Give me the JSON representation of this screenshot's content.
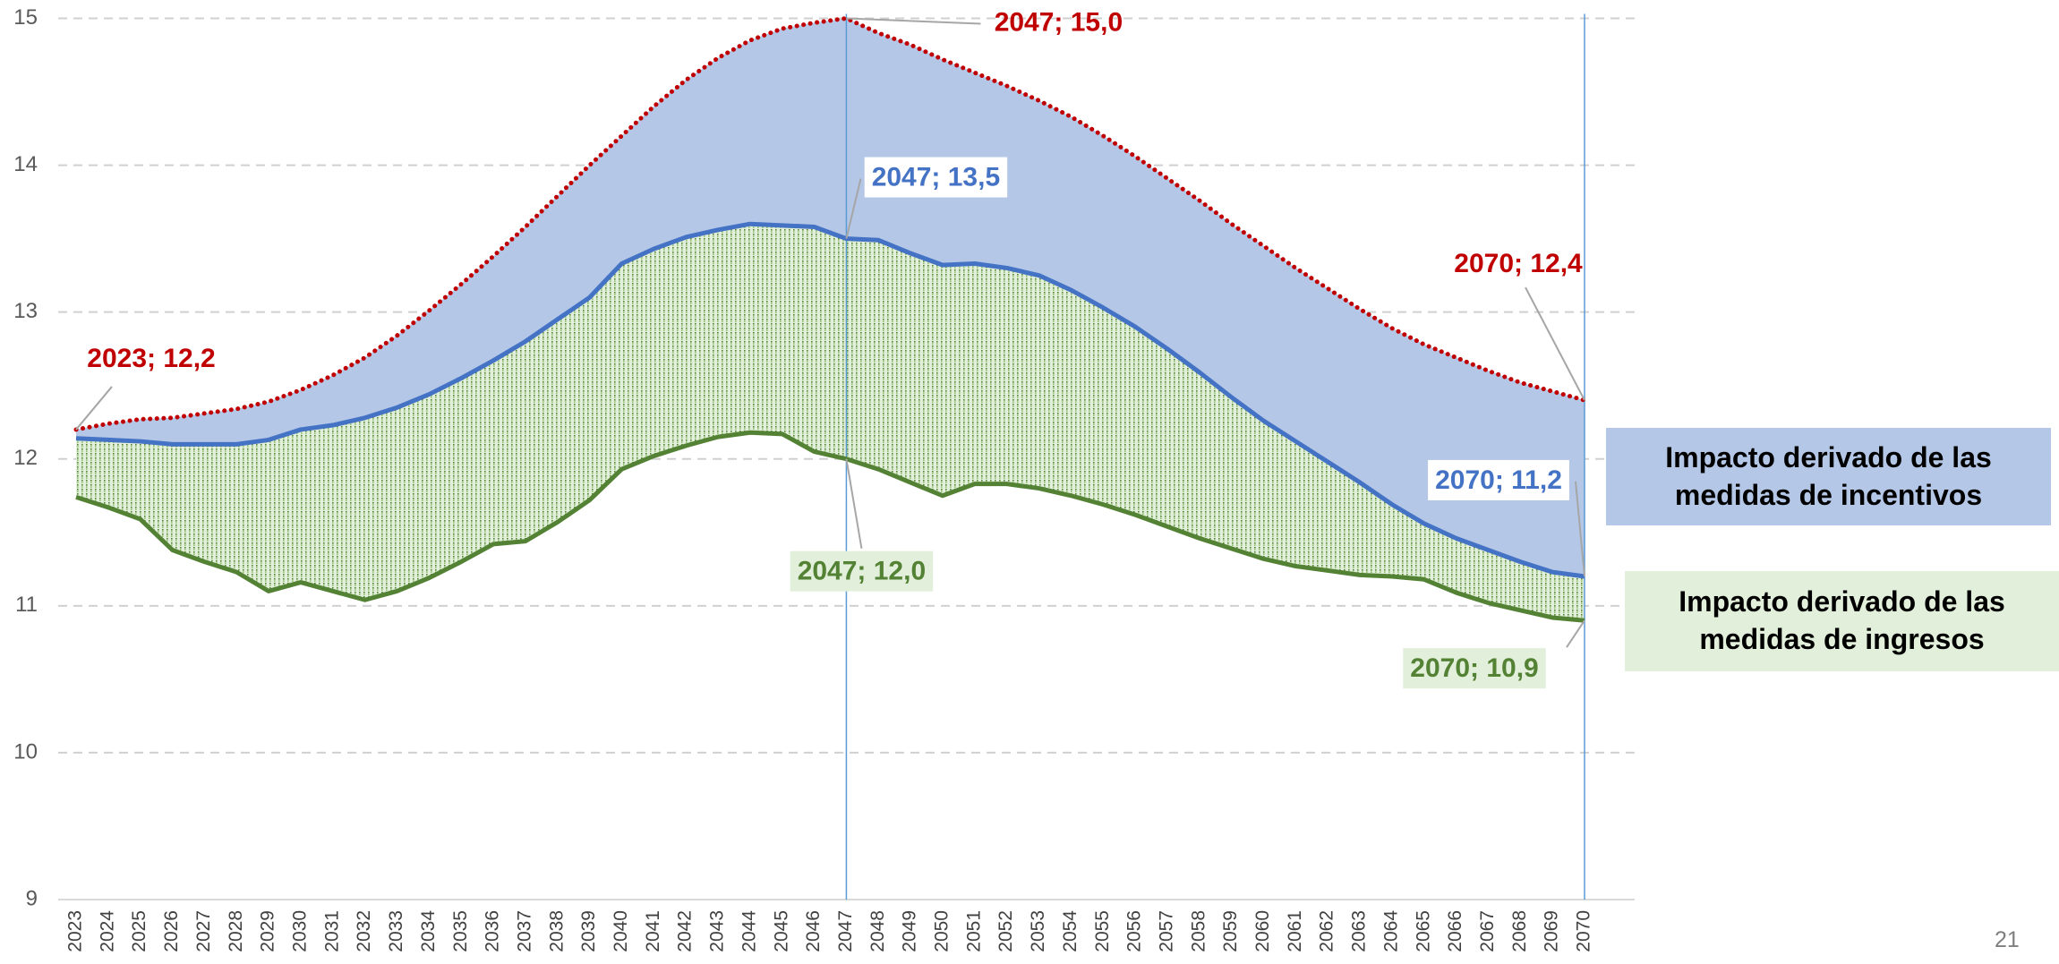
{
  "chart_data": {
    "type": "line",
    "categories": [
      "2023",
      "2024",
      "2025",
      "2026",
      "2027",
      "2028",
      "2029",
      "2030",
      "2031",
      "2032",
      "2033",
      "2034",
      "2035",
      "2036",
      "2037",
      "2038",
      "2039",
      "2040",
      "2041",
      "2042",
      "2043",
      "2044",
      "2045",
      "2046",
      "2047",
      "2048",
      "2049",
      "2050",
      "2051",
      "2052",
      "2053",
      "2054",
      "2055",
      "2056",
      "2057",
      "2058",
      "2059",
      "2060",
      "2061",
      "2062",
      "2063",
      "2064",
      "2065",
      "2066",
      "2067",
      "2068",
      "2069",
      "2070"
    ],
    "series": [
      {
        "color": "#c00000",
        "style": "dotted",
        "values": [
          12.2,
          12.24,
          12.27,
          12.28,
          12.31,
          12.34,
          12.39,
          12.47,
          12.57,
          12.69,
          12.84,
          13.01,
          13.19,
          13.38,
          13.58,
          13.79,
          14.0,
          14.2,
          14.4,
          14.58,
          14.73,
          14.85,
          14.93,
          14.97,
          15.0,
          14.9,
          14.82,
          14.72,
          14.63,
          14.54,
          14.44,
          14.33,
          14.2,
          14.06,
          13.91,
          13.76,
          13.6,
          13.45,
          13.3,
          13.16,
          13.02,
          12.89,
          12.78,
          12.69,
          12.6,
          12.52,
          12.46,
          12.4
        ],
        "value_labels": [
          "2023;  12,2",
          null,
          null,
          null,
          null,
          null,
          null,
          null,
          null,
          null,
          null,
          null,
          null,
          null,
          null,
          null,
          null,
          null,
          null,
          null,
          null,
          null,
          null,
          null,
          "2047;  15,0",
          null,
          null,
          null,
          null,
          null,
          null,
          null,
          null,
          null,
          null,
          null,
          null,
          null,
          null,
          null,
          null,
          null,
          null,
          null,
          null,
          null,
          null,
          "2070;  12,4"
        ]
      },
      {
        "color": "#4472c4",
        "style": "solid",
        "values": [
          12.14,
          12.13,
          12.12,
          12.1,
          12.1,
          12.1,
          12.13,
          12.2,
          12.23,
          12.28,
          12.35,
          12.44,
          12.55,
          12.67,
          12.8,
          12.95,
          13.1,
          13.33,
          13.43,
          13.51,
          13.56,
          13.6,
          13.59,
          13.58,
          13.5,
          13.49,
          13.4,
          13.32,
          13.33,
          13.3,
          13.25,
          13.15,
          13.03,
          12.9,
          12.75,
          12.59,
          12.42,
          12.26,
          12.12,
          11.98,
          11.84,
          11.69,
          11.56,
          11.46,
          11.38,
          11.3,
          11.23,
          11.2
        ],
        "value_labels": [
          null,
          null,
          null,
          null,
          null,
          null,
          null,
          null,
          null,
          null,
          null,
          null,
          null,
          null,
          null,
          null,
          null,
          null,
          null,
          null,
          null,
          null,
          null,
          null,
          "2047;  13,5",
          null,
          null,
          null,
          null,
          null,
          null,
          null,
          null,
          null,
          null,
          null,
          null,
          null,
          null,
          null,
          null,
          null,
          null,
          null,
          null,
          null,
          null,
          "2070;  11,2"
        ]
      },
      {
        "color": "#548235",
        "style": "solid",
        "values": [
          11.74,
          11.67,
          11.59,
          11.38,
          11.3,
          11.23,
          11.1,
          11.16,
          11.1,
          11.04,
          11.1,
          11.19,
          11.3,
          11.42,
          11.44,
          11.57,
          11.72,
          11.93,
          12.02,
          12.09,
          12.15,
          12.18,
          12.17,
          12.05,
          12.0,
          11.93,
          11.84,
          11.75,
          11.83,
          11.83,
          11.8,
          11.75,
          11.69,
          11.62,
          11.54,
          11.46,
          11.39,
          11.32,
          11.27,
          11.24,
          11.21,
          11.2,
          11.18,
          11.09,
          11.02,
          10.97,
          10.92,
          10.9
        ],
        "value_labels": [
          null,
          null,
          null,
          null,
          null,
          null,
          null,
          null,
          null,
          null,
          null,
          null,
          null,
          null,
          null,
          null,
          null,
          null,
          null,
          null,
          null,
          null,
          null,
          null,
          "2047;  12,0",
          null,
          null,
          null,
          null,
          null,
          null,
          null,
          null,
          null,
          null,
          null,
          null,
          null,
          null,
          null,
          null,
          null,
          null,
          null,
          null,
          null,
          null,
          "2070; 10,9"
        ]
      }
    ],
    "areas": [
      {
        "name": "Impacto derivado de las medidas de incentivos",
        "color": "#b4c7e7",
        "top": 0,
        "bottom": 1
      },
      {
        "name": "Impacto derivado de las medidas de ingresos",
        "color": "#e2efda",
        "top": 1,
        "bottom": 2
      }
    ],
    "vlines": [
      "2047",
      "2070"
    ],
    "ylim": [
      9,
      15
    ],
    "yticks": [
      9,
      10,
      11,
      12,
      13,
      14,
      15
    ],
    "grid": true,
    "page_number": "21"
  }
}
